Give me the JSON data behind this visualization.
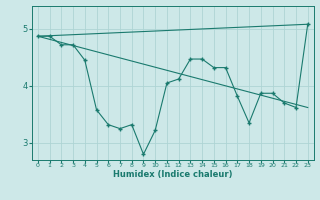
{
  "xlabel": "Humidex (Indice chaleur)",
  "ylabel": "",
  "background_color": "#cde8e8",
  "line_color": "#1a7a6e",
  "grid_color": "#aed4d4",
  "xlim": [
    -0.5,
    23.5
  ],
  "ylim": [
    2.7,
    5.4
  ],
  "xticks": [
    0,
    1,
    2,
    3,
    4,
    5,
    6,
    7,
    8,
    9,
    10,
    11,
    12,
    13,
    14,
    15,
    16,
    17,
    18,
    19,
    20,
    21,
    22,
    23
  ],
  "yticks": [
    3,
    4,
    5
  ],
  "line_zigzag": {
    "x": [
      0,
      1,
      2,
      3,
      4,
      5,
      6,
      7,
      8,
      9,
      10,
      11,
      12,
      13,
      14,
      15,
      16,
      17,
      18,
      19,
      20,
      21,
      22,
      23
    ],
    "y": [
      4.87,
      4.87,
      4.72,
      4.72,
      4.45,
      3.58,
      3.32,
      3.25,
      3.32,
      2.8,
      3.22,
      4.05,
      4.12,
      4.47,
      4.47,
      4.32,
      4.32,
      3.82,
      3.35,
      3.87,
      3.87,
      3.7,
      3.62,
      5.08
    ]
  },
  "line_upper": {
    "x": [
      0,
      23
    ],
    "y": [
      4.87,
      5.08
    ]
  },
  "line_lower": {
    "x": [
      0,
      23
    ],
    "y": [
      4.87,
      3.62
    ]
  }
}
